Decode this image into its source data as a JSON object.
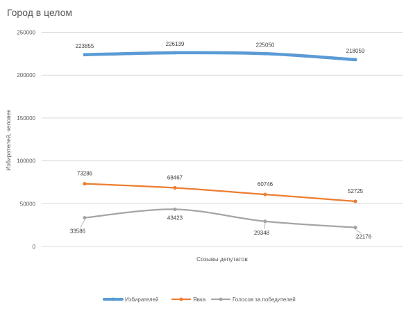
{
  "chart_data": {
    "type": "line",
    "title": "Город в  целом",
    "xlabel": "Созывы депутатов",
    "ylabel": "Избирателей, человек",
    "ylim": [
      0,
      250000
    ],
    "yticks": [
      "0",
      "50000",
      "100000",
      "150000",
      "200000",
      "250000"
    ],
    "grid": true,
    "legend_position": "bottom",
    "x_count": 4,
    "series": [
      {
        "name": "Избирателей",
        "values": [
          223855,
          226139,
          225050,
          218059
        ],
        "labels": [
          "223855",
          "226139",
          "225050",
          "218059"
        ],
        "color": "#5b9bd5"
      },
      {
        "name": "Явка",
        "values": [
          73286,
          68467,
          60746,
          52725
        ],
        "labels": [
          "73286",
          "68467",
          "60746",
          "52725"
        ],
        "color": "#ed7d31"
      },
      {
        "name": "Голосов за победителей",
        "values": [
          33586,
          43423,
          29348,
          22176
        ],
        "labels": [
          "33586",
          "43423",
          "29348",
          "22176"
        ],
        "color": "#a5a5a5"
      }
    ]
  }
}
